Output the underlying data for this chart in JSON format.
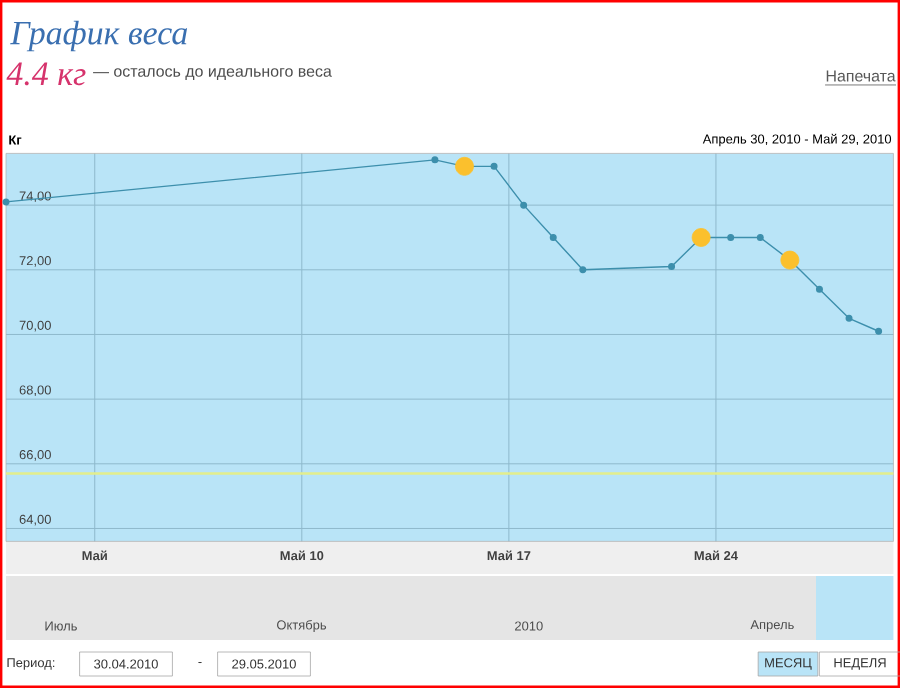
{
  "chart_data": {
    "type": "line",
    "title": "График веса",
    "subtitle": "— осталось до идеального веса",
    "ylabel": "Кг",
    "annotations": [
      "4.4 кг",
      "Напечата",
      "Апрель 30, 2010 - Май 29, 2010",
      "Июль",
      "Октябрь",
      "2010",
      "Апрель",
      "Период:",
      "30.04.2010",
      "-",
      "29.05.2010",
      "МЕСЯЦ",
      "НЕДЕЛЯ"
    ],
    "xlim": [
      "2010-04-30",
      "2010-05-30"
    ],
    "xticks": [
      {
        "value": "2010-05-03",
        "label": "Май"
      },
      {
        "value": "2010-05-10",
        "label": "Май 10"
      },
      {
        "value": "2010-05-17",
        "label": "Май 17"
      },
      {
        "value": "2010-05-24",
        "label": "Май 24"
      }
    ],
    "ylim": [
      63.6,
      75.6
    ],
    "yticks": [
      {
        "value": 64,
        "label": "64,00"
      },
      {
        "value": 66,
        "label": "66,00"
      },
      {
        "value": 68,
        "label": "68,00"
      },
      {
        "value": 70,
        "label": "70,00"
      },
      {
        "value": 72,
        "label": "72,00"
      },
      {
        "value": 74,
        "label": "74,00"
      }
    ],
    "grid": true,
    "series": [
      {
        "color": "#3d8fac",
        "marker": "circle",
        "x": [
          "2010-04-30",
          "2010-05-14T12:00",
          "2010-05-15T12:00",
          "2010-05-16T12:00",
          "2010-05-17T12:00",
          "2010-05-18T12:00",
          "2010-05-19T12:00",
          "2010-05-22T12:00",
          "2010-05-23T12:00",
          "2010-05-24T12:00",
          "2010-05-25T12:00",
          "2010-05-26T12:00",
          "2010-05-27T12:00",
          "2010-05-28T12:00",
          "2010-05-29T12:00"
        ],
        "values": [
          74.1,
          75.4,
          75.2,
          75.2,
          74.0,
          73.0,
          72.0,
          72.1,
          73.0,
          73.0,
          73.0,
          72.3,
          71.4,
          70.5,
          70.1
        ]
      },
      {
        "type": "scatter",
        "color": "#fbc02d",
        "marker": "circle",
        "x": [
          "2010-05-15T12:00",
          "2010-05-23T12:00",
          "2010-05-26T12:00"
        ],
        "values": [
          75.2,
          73.0,
          72.3
        ]
      }
    ],
    "ref_lines": [
      {
        "axis": "y",
        "value": 65.7,
        "color": "#e3ee8c"
      }
    ]
  }
}
